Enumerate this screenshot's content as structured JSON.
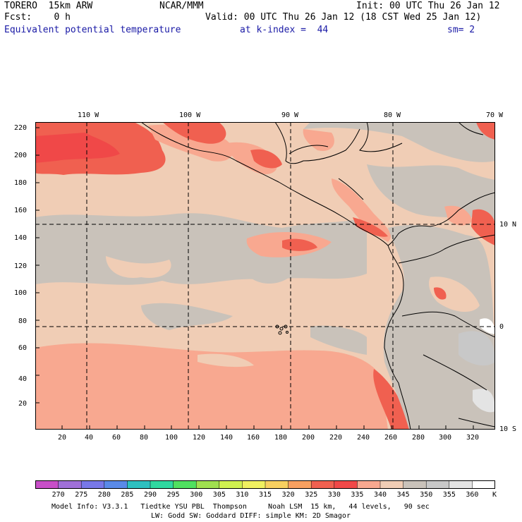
{
  "header": {
    "model": "TORERO  15km ARW",
    "center": "NCAR/MMM",
    "init": "Init: 00 UTC Thu 26 Jan 12",
    "fcst": "Fcst:    0 h",
    "valid": "Valid: 00 UTC Thu 26 Jan 12 (18 CST Wed 25 Jan 12)",
    "field": "Equivalent potential temperature",
    "level": "at k-index =  44",
    "smooth": "sm= 2"
  },
  "map": {
    "lon_labels": [
      "110 W",
      "100 W",
      "90 W",
      "80 W",
      "70 W"
    ],
    "lat_labels": [
      "10 N",
      "0",
      "10 S"
    ],
    "y_ticks": [
      "20",
      "40",
      "60",
      "80",
      "100",
      "120",
      "140",
      "160",
      "180",
      "200",
      "220"
    ],
    "x_ticks": [
      "20",
      "40",
      "60",
      "80",
      "100",
      "120",
      "140",
      "160",
      "180",
      "200",
      "220",
      "240",
      "260",
      "280",
      "300",
      "320"
    ]
  },
  "colorbar": {
    "labels": [
      "270",
      "275",
      "280",
      "285",
      "290",
      "295",
      "300",
      "305",
      "310",
      "315",
      "320",
      "325",
      "330",
      "335",
      "340",
      "345",
      "350",
      "355",
      "360"
    ],
    "unit": "K",
    "colors": [
      "#c84fc8",
      "#a070d8",
      "#7878e8",
      "#5a8ae8",
      "#2ec0c0",
      "#30d8a0",
      "#50e060",
      "#a0e050",
      "#d0f050",
      "#f0f060",
      "#f8d060",
      "#f8a060",
      "#f06050",
      "#f04848",
      "#f8a890",
      "#f0cdb5",
      "#c9c2ba",
      "#c8c8c8",
      "#e4e4e4",
      "#ffffff"
    ]
  },
  "footer": {
    "line1": "Model Info: V3.3.1   Tiedtke YSU PBL  Thompson     Noah LSM  15 km,   44 levels,   90 sec",
    "line2": "LW: Godd SW: Goddard DIFF: simple KM: 2D Smagor"
  }
}
